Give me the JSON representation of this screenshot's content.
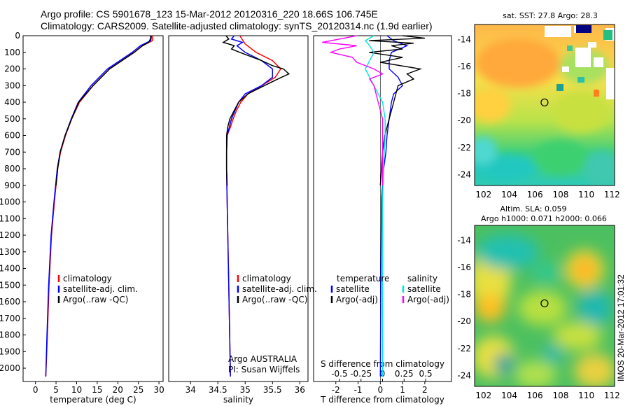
{
  "header": {
    "title_line1": "Argo profile: CS 5901678_123 15-Mar-2012 20120316_220 18.66S 106.745E",
    "title_line2": "Climatology: CARS2009. Satellite-adjusted climatology: synTS_20120314.nc (1.9d earlier)"
  },
  "stamp": "IMOS 20-Mar-2012 17:01:32",
  "colors": {
    "climatology": "#ff0000",
    "satellite": "#0000ff",
    "argo": "#000000",
    "sal_sat": "#00e5e5",
    "sal_argo": "#ff00ff"
  },
  "chart_data": [
    {
      "id": "temperature",
      "type": "line",
      "xlabel": "temperature (deg C)",
      "ylabel": "",
      "xlim": [
        -3,
        31
      ],
      "ylim": [
        2080,
        0
      ],
      "xticks": [
        "0",
        "5",
        "10",
        "15",
        "20",
        "25",
        "30"
      ],
      "yticks": [
        "0",
        "100",
        "200",
        "300",
        "400",
        "500",
        "600",
        "700",
        "800",
        "900",
        "1000",
        "1100",
        "1200",
        "1300",
        "1400",
        "1500",
        "1600",
        "1700",
        "1800",
        "1900",
        "2000"
      ],
      "legend": [
        "climatology",
        "satellite-adj. clim.",
        "Argo(..raw -QC)"
      ],
      "series": [
        {
          "name": "climatology",
          "depth": [
            0,
            30,
            60,
            100,
            150,
            200,
            300,
            400,
            500,
            600,
            700,
            800,
            1000,
            1200,
            1500,
            1800,
            2050
          ],
          "values": [
            28.5,
            28.4,
            26,
            24,
            21,
            18,
            14,
            10.7,
            8.8,
            7.3,
            6.1,
            5.4,
            4.6,
            3.9,
            3.3,
            2.9,
            2.5
          ]
        },
        {
          "name": "satellite-adj. clim.",
          "depth": [
            0,
            30,
            60,
            100,
            150,
            200,
            300,
            400,
            500,
            600,
            700,
            800,
            1000,
            1200,
            1500,
            1800,
            2050
          ],
          "values": [
            28.2,
            28.0,
            25.5,
            23.5,
            20.5,
            17.5,
            13.5,
            10.4,
            8.7,
            7.2,
            6.0,
            5.3,
            4.5,
            3.8,
            3.2,
            2.8,
            2.5
          ]
        },
        {
          "name": "Argo(..raw -QC)",
          "depth": [
            0,
            20,
            40,
            60,
            100,
            150,
            200,
            300,
            400,
            500,
            600,
            700,
            800,
            900
          ],
          "values": [
            28.0,
            27.9,
            27.5,
            26,
            24,
            21,
            18,
            14,
            10.5,
            8.8,
            7.2,
            6.0,
            5.4,
            5.0
          ]
        }
      ]
    },
    {
      "id": "salinity",
      "type": "line",
      "xlabel": "salinity",
      "ylabel": "",
      "xlim": [
        33.6,
        36.15
      ],
      "ylim": [
        2080,
        0
      ],
      "xticks": [
        "34",
        "34.5",
        "35",
        "35.5",
        "36"
      ],
      "legend": [
        "climatology",
        "satellite-adj. clim.",
        "Argo(..raw -QC)"
      ],
      "annotation": [
        "Argo AUSTRALIA",
        "PI: Susan Wijffels"
      ],
      "series": [
        {
          "name": "climatology",
          "depth": [
            0,
            50,
            100,
            150,
            200,
            250,
            300,
            350,
            400,
            450,
            500,
            550,
            600,
            700,
            800,
            1000,
            1500,
            2050
          ],
          "values": [
            34.9,
            35.0,
            35.2,
            35.5,
            35.65,
            35.55,
            35.3,
            35.05,
            34.92,
            34.84,
            34.78,
            34.73,
            34.67,
            34.66,
            34.66,
            34.67,
            34.7,
            34.73
          ]
        },
        {
          "name": "satellite-adj. clim.",
          "depth": [
            0,
            20,
            40,
            60,
            100,
            150,
            200,
            250,
            300,
            350,
            400,
            500,
            600,
            700,
            800,
            1000,
            1500,
            2050
          ],
          "values": [
            34.8,
            34.75,
            34.95,
            34.85,
            35.0,
            35.3,
            35.5,
            35.5,
            35.3,
            35.0,
            34.88,
            34.75,
            34.67,
            34.66,
            34.66,
            34.67,
            34.7,
            34.73
          ]
        },
        {
          "name": "Argo(..raw -QC)",
          "depth": [
            0,
            20,
            40,
            60,
            80,
            100,
            150,
            180,
            200,
            230,
            260,
            300,
            350,
            400,
            450,
            500,
            550,
            600,
            650,
            700,
            800,
            900
          ],
          "values": [
            34.65,
            34.7,
            34.6,
            34.8,
            34.75,
            34.9,
            35.3,
            35.5,
            35.7,
            35.8,
            35.6,
            35.35,
            35.05,
            34.88,
            34.8,
            34.72,
            34.68,
            34.66,
            34.66,
            34.66,
            34.66,
            34.67
          ]
        }
      ]
    },
    {
      "id": "difference",
      "type": "line",
      "xlabel": "T difference from climatology",
      "x2label": "S difference from climatology",
      "ylim": [
        2080,
        0
      ],
      "xlim": [
        -3,
        3.2
      ],
      "xticks": [
        "-2",
        "-1",
        "0",
        "1",
        "2"
      ],
      "x2lim": [
        -0.8,
        0.8
      ],
      "x2ticks": [
        "-0.5",
        "-0.25",
        "0",
        "0.25",
        "0.5"
      ],
      "legend_titles": [
        "temperature",
        "salinity"
      ],
      "legend": [
        "satellite",
        "Argo(-adj)",
        "satellite",
        "Argo(-adj)"
      ],
      "series": [
        {
          "name": "T satellite",
          "axis": "T",
          "depth": [
            0,
            30,
            60,
            100,
            150,
            200,
            250,
            300,
            350,
            400,
            500,
            600,
            700,
            800,
            900,
            1000,
            1500,
            2050
          ],
          "values": [
            0.3,
            0.6,
            1.2,
            0.5,
            0.4,
            0.4,
            0.8,
            1.0,
            0.6,
            0.5,
            0.4,
            0.3,
            0.25,
            0.15,
            0.1,
            0.05,
            0.02,
            0.0
          ]
        },
        {
          "name": "T Argo(-adj)",
          "axis": "T",
          "depth": [
            0,
            15,
            30,
            45,
            60,
            80,
            100,
            130,
            160,
            200,
            230,
            260,
            300,
            400,
            500,
            600,
            700,
            800,
            900
          ],
          "values": [
            1.0,
            2.0,
            -0.5,
            1.5,
            0.5,
            1.0,
            -0.5,
            1.0,
            0.0,
            1.8,
            1.2,
            1.5,
            0.8,
            0.6,
            0.4,
            0.2,
            0.1,
            0.05,
            0.0
          ]
        },
        {
          "name": "S satellite",
          "axis": "S",
          "depth": [
            0,
            30,
            60,
            100,
            150,
            200,
            250,
            300,
            350,
            400,
            500,
            600,
            700,
            800,
            1000,
            1500,
            2050
          ],
          "values": [
            -0.1,
            -0.2,
            -0.15,
            -0.1,
            -0.15,
            -0.2,
            -0.15,
            -0.1,
            -0.05,
            0.0,
            0.03,
            0.03,
            0.02,
            0.01,
            0.0,
            0.0,
            0.0
          ]
        },
        {
          "name": "S Argo(-adj)",
          "axis": "S",
          "depth": [
            0,
            20,
            40,
            60,
            80,
            100,
            130,
            160,
            200,
            230,
            260,
            300,
            400,
            500,
            600,
            700,
            800,
            900
          ],
          "values": [
            -0.3,
            -0.5,
            -0.7,
            -0.3,
            -0.5,
            -0.6,
            -0.35,
            -0.3,
            -0.1,
            0.0,
            -0.15,
            -0.1,
            -0.05,
            0.0,
            0.0,
            0.0,
            0.0,
            0.0
          ]
        }
      ]
    },
    {
      "id": "sst_map",
      "type": "heatmap",
      "title": "sat. SST: 27.8 Argo: 28.3",
      "xticks": [
        "102",
        "104",
        "106",
        "108",
        "110",
        "112"
      ],
      "yticks": [
        "-14",
        "-16",
        "-18",
        "-20",
        "-22",
        "-24"
      ],
      "xlim": [
        101.3,
        112.2
      ],
      "ylim": [
        -24.8,
        -12.9
      ],
      "profile_location": {
        "lon": 106.745,
        "lat": -18.66
      }
    },
    {
      "id": "sla_map",
      "type": "heatmap",
      "title_line1": "Altim. SLA: 0.059",
      "title_line2": "Argo h1000: 0.071 h2000: 0.066",
      "xticks": [
        "102",
        "104",
        "106",
        "108",
        "110",
        "112"
      ],
      "yticks": [
        "-14",
        "-16",
        "-18",
        "-20",
        "-22",
        "-24"
      ],
      "xlim": [
        101.3,
        112.2
      ],
      "ylim": [
        -24.8,
        -12.9
      ],
      "profile_location": {
        "lon": 106.745,
        "lat": -18.66
      }
    }
  ]
}
